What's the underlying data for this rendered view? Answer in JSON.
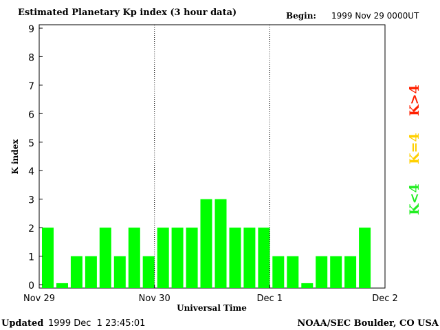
{
  "chart_data": {
    "type": "bar",
    "title": "Estimated Planetary Kp index (3 hour data)",
    "begin_label": "Begin:",
    "begin_value": "1999 Nov 29 0000UT",
    "ylabel": "K index",
    "xlabel": "Universal Time",
    "ylim": [
      0,
      9
    ],
    "yticks": [
      "0",
      "1",
      "2",
      "3",
      "4",
      "5",
      "6",
      "7",
      "8",
      "9"
    ],
    "xticks": [
      "Nov 29",
      "Nov 30",
      "Dec 1",
      "Dec 2"
    ],
    "values": [
      2,
      0.05,
      1,
      1,
      2,
      1,
      2,
      1,
      2,
      2,
      2,
      3,
      3,
      2,
      2,
      2,
      1,
      1,
      0.05,
      1,
      1,
      1,
      2
    ],
    "grid": "dotted vertical day separators",
    "legend": [
      {
        "label": "K>4",
        "color": "#ff2000"
      },
      {
        "label": "K=4",
        "color": "#ffd000"
      },
      {
        "label": "K<4",
        "color": "#22ee22"
      }
    ],
    "bar_color": "#00ff00"
  },
  "footer": {
    "updated_label": "Updated",
    "updated_value": "1999 Dec  1 23:45:01",
    "credit": "NOAA/SEC Boulder, CO USA"
  }
}
